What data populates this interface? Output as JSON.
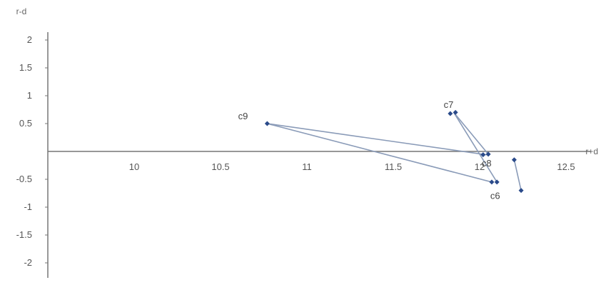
{
  "chart_data": {
    "type": "line",
    "title": "",
    "xlabel": "r+d",
    "ylabel": "r-d",
    "xlim": [
      9.5,
      12.7
    ],
    "ylim": [
      -2,
      2.2
    ],
    "x_ticks": [
      10,
      10.5,
      11,
      11.5,
      12,
      12.5
    ],
    "x_tick_labels": [
      "10",
      "10.5",
      "11",
      "11.5",
      "12",
      "12.5"
    ],
    "y_ticks": [
      -2,
      -1.5,
      -1,
      -0.5,
      0.5,
      1,
      1.5,
      2
    ],
    "y_tick_labels": [
      "-2",
      "-1.5",
      "-1",
      "-0.5",
      "0.5",
      "1",
      "1.5",
      "2"
    ],
    "grid": false,
    "legend": "none",
    "line_color": "#8a9bb8",
    "marker_color": "#2a4a8a",
    "labels": [
      {
        "text": "c9",
        "x": 10.63,
        "y": 0.58
      },
      {
        "text": "c7",
        "x": 11.82,
        "y": 0.78
      },
      {
        "text": "c8",
        "x": 12.04,
        "y": -0.27
      },
      {
        "text": "c6",
        "x": 12.09,
        "y": -0.85
      }
    ],
    "segments": [
      {
        "from": [
          10.77,
          0.5
        ],
        "to": [
          12.07,
          -0.55
        ]
      },
      {
        "from": [
          10.77,
          0.5
        ],
        "to": [
          12.04,
          -0.06
        ]
      },
      {
        "from": [
          11.85,
          0.7
        ],
        "to": [
          12.1,
          -0.55
        ]
      },
      {
        "from": [
          11.85,
          0.7
        ],
        "to": [
          12.05,
          -0.05
        ]
      },
      {
        "from": [
          12.2,
          -0.15
        ],
        "to": [
          12.24,
          -0.7
        ]
      }
    ],
    "points": [
      {
        "x": 10.77,
        "y": 0.5
      },
      {
        "x": 11.83,
        "y": 0.68
      },
      {
        "x": 11.86,
        "y": 0.7
      },
      {
        "x": 12.02,
        "y": -0.06
      },
      {
        "x": 12.05,
        "y": -0.05
      },
      {
        "x": 12.07,
        "y": -0.55
      },
      {
        "x": 12.1,
        "y": -0.55
      },
      {
        "x": 12.2,
        "y": -0.15
      },
      {
        "x": 12.24,
        "y": -0.7
      }
    ]
  }
}
